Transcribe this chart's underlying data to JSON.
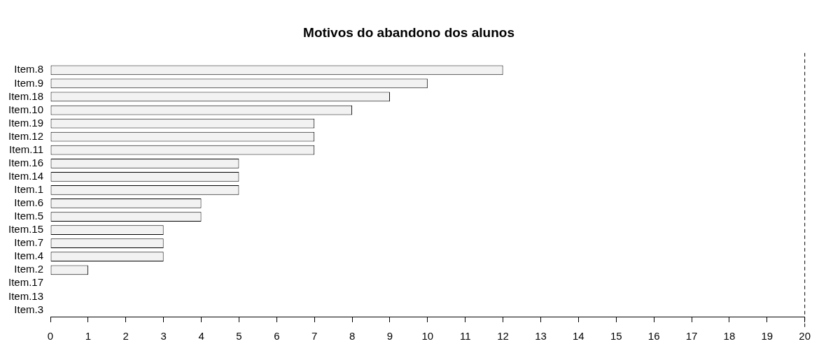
{
  "chart_data": {
    "type": "bar",
    "orientation": "horizontal",
    "title": "Motivos do abandono dos alunos",
    "categories": [
      "Item.8",
      "Item.9",
      "Item.18",
      "Item.10",
      "Item.19",
      "Item.12",
      "Item.11",
      "Item.16",
      "Item.14",
      "Item.1",
      "Item.6",
      "Item.5",
      "Item.15",
      "Item.7",
      "Item.4",
      "Item.2",
      "Item.17",
      "Item.13",
      "Item.3"
    ],
    "values": [
      12,
      10,
      9,
      8,
      7,
      7,
      7,
      5,
      5,
      5,
      4,
      4,
      3,
      3,
      3,
      1,
      0,
      0,
      0
    ],
    "color": "#f2f2f2",
    "xlim": [
      0,
      20
    ],
    "xticks": [
      0,
      1,
      2,
      3,
      4,
      5,
      6,
      7,
      8,
      9,
      10,
      11,
      12,
      13,
      14,
      15,
      16,
      17,
      18,
      19,
      20
    ],
    "ref_lines": [
      {
        "axis": "x",
        "value": 20,
        "color": "#000000",
        "line_style": "dashed"
      }
    ],
    "grid": false,
    "legend": false
  }
}
